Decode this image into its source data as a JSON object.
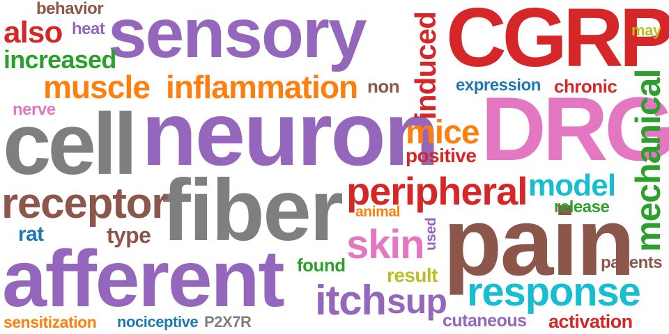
{
  "words": [
    {
      "text": "sensory",
      "color": "#9467bd"
    },
    {
      "text": "CGRP",
      "color": "#d62728"
    },
    {
      "text": "neuron",
      "color": "#9467bd"
    },
    {
      "text": "cell",
      "color": "#7f7f7f"
    },
    {
      "text": "DRG",
      "color": "#e377c2"
    },
    {
      "text": "fiber",
      "color": "#7f7f7f"
    },
    {
      "text": "pain",
      "color": "#8c564b"
    },
    {
      "text": "afferent",
      "color": "#9467bd"
    },
    {
      "text": "receptor",
      "color": "#8c564b"
    },
    {
      "text": "muscle",
      "color": "#ff7f0e"
    },
    {
      "text": "inflammation",
      "color": "#ff7f0e"
    },
    {
      "text": "peripheral",
      "color": "#d62728"
    },
    {
      "text": "mechanical",
      "color": "#2ca02c"
    },
    {
      "text": "response",
      "color": "#17becf"
    },
    {
      "text": "itch",
      "color": "#9467bd"
    },
    {
      "text": "sup",
      "color": "#9467bd"
    },
    {
      "text": "skin",
      "color": "#e377c2"
    },
    {
      "text": "model",
      "color": "#17becf"
    },
    {
      "text": "mice",
      "color": "#ff7f0e"
    },
    {
      "text": "induced",
      "color": "#d62728"
    },
    {
      "text": "also",
      "color": "#d62728"
    },
    {
      "text": "increased",
      "color": "#2ca02c"
    },
    {
      "text": "behavior",
      "color": "#8c564b"
    },
    {
      "text": "heat",
      "color": "#9467bd"
    },
    {
      "text": "positive",
      "color": "#d62728"
    },
    {
      "text": "expression",
      "color": "#1f77b4"
    },
    {
      "text": "chronic",
      "color": "#d62728"
    },
    {
      "text": "may",
      "color": "#bcbd22"
    },
    {
      "text": "nerve",
      "color": "#e377c2"
    },
    {
      "text": "non",
      "color": "#8c564b"
    },
    {
      "text": "release",
      "color": "#2ca02c"
    },
    {
      "text": "animal",
      "color": "#ff7f0e"
    },
    {
      "text": "used",
      "color": "#9467bd"
    },
    {
      "text": "rat",
      "color": "#1f77b4"
    },
    {
      "text": "type",
      "color": "#8c564b"
    },
    {
      "text": "found",
      "color": "#2ca02c"
    },
    {
      "text": "result",
      "color": "#bcbd22"
    },
    {
      "text": "patients",
      "color": "#8c564b"
    },
    {
      "text": "sensitization",
      "color": "#ff7f0e"
    },
    {
      "text": "nociceptive",
      "color": "#1f77b4"
    },
    {
      "text": "P2X7R",
      "color": "#7f7f7f"
    },
    {
      "text": "cutaneous",
      "color": "#9467bd"
    },
    {
      "text": "activation",
      "color": "#d62728"
    }
  ]
}
